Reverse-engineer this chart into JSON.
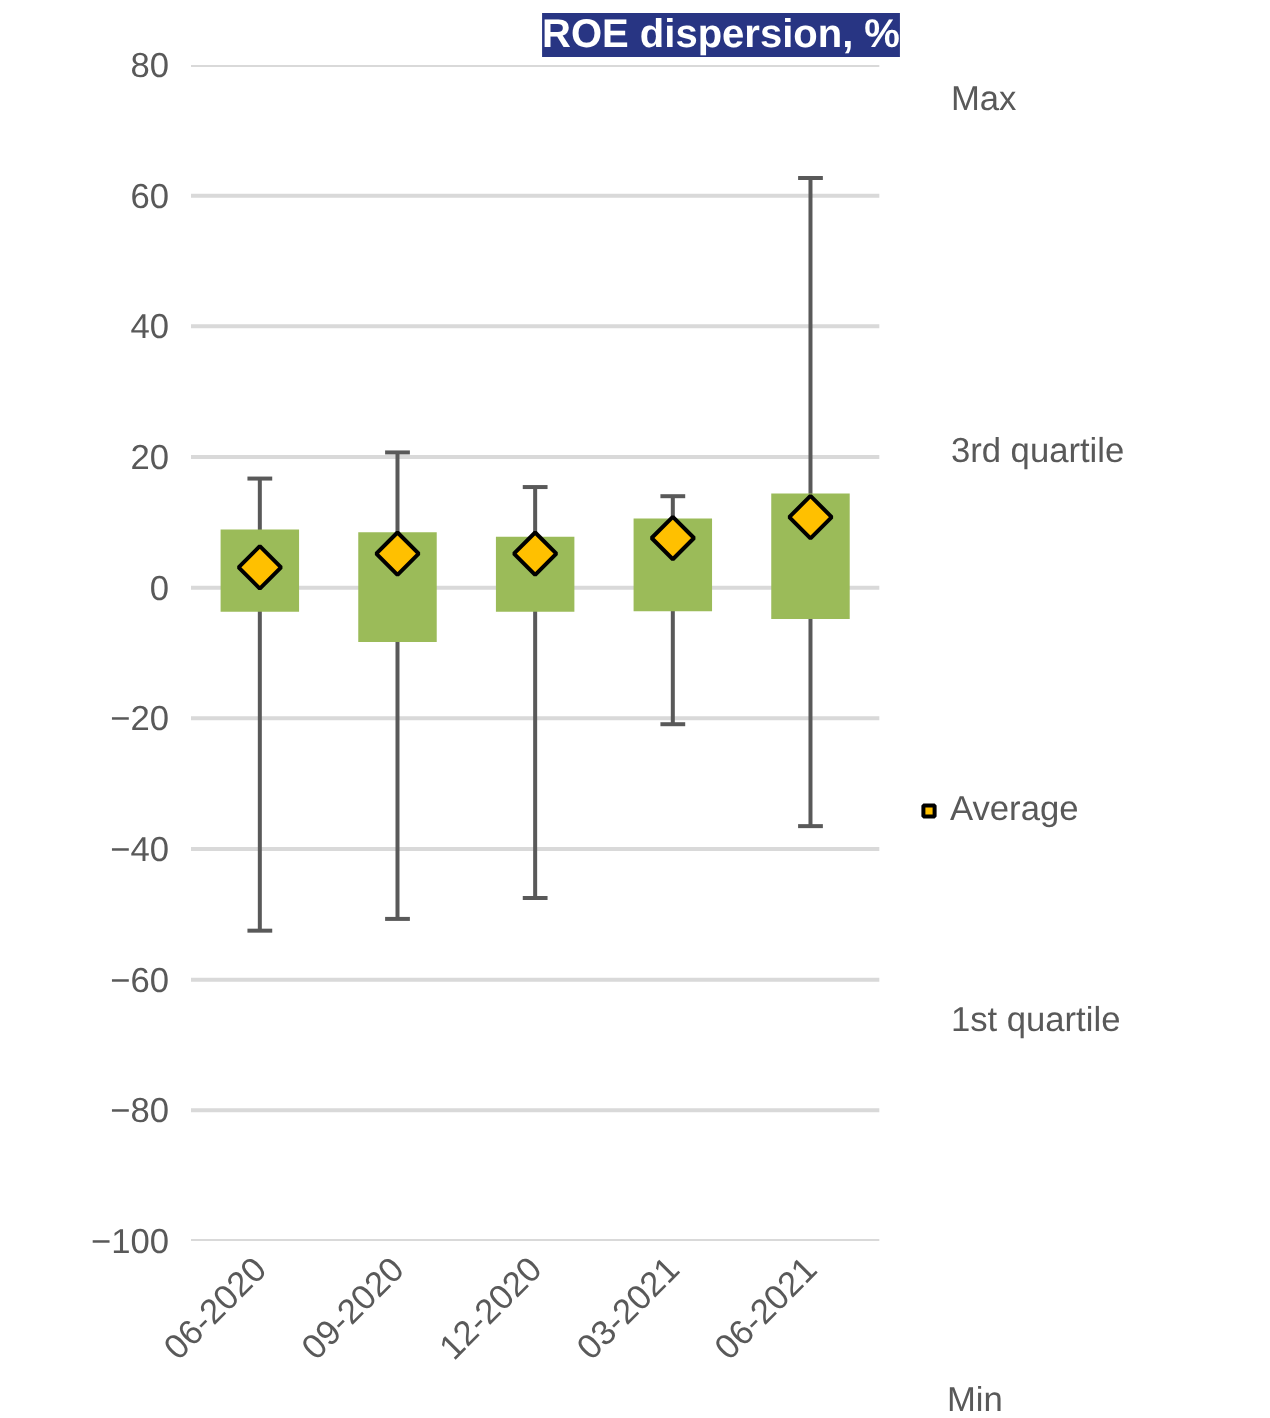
{
  "chart_data": {
    "type": "bar",
    "title": "ROE dispersion, %",
    "categories": [
      "06-2020",
      "09-2020",
      "12-2020",
      "03-2021",
      "06-2021"
    ],
    "series": [
      {
        "color": "#9bbb59",
        "base": [
          -3.7,
          -8.3,
          -3.7,
          -3.6,
          -4.8
        ],
        "values": [
          12.6,
          16.8,
          11.5,
          14.2,
          19.2
        ],
        "errors": [
          [
            -52.5,
            16.7
          ],
          [
            -50.7,
            20.7
          ],
          [
            -47.5,
            15.4
          ],
          [
            -20.9,
            14.0
          ],
          [
            -36.5,
            62.7
          ]
        ]
      },
      {
        "type": "scatter",
        "name": "Average",
        "color": "#ffc000",
        "x": [
          "06-2020",
          "09-2020",
          "12-2020",
          "03-2021",
          "06-2021"
        ],
        "values": [
          3.1,
          5.2,
          5.2,
          7.6,
          10.8
        ]
      }
    ],
    "ylim": [
      -100,
      80
    ],
    "yticks": [
      -100,
      -80,
      -60,
      -40,
      -20,
      0,
      20,
      40,
      60,
      80
    ],
    "grid": "y",
    "legend": "right",
    "marker": "diamond",
    "annotations": [
      "Max",
      "3rd quartile",
      "1st quartile",
      "Min"
    ]
  }
}
